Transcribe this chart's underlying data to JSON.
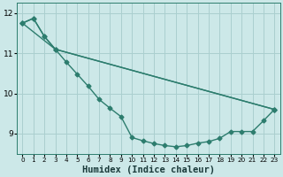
{
  "xlabel": "Humidex (Indice chaleur)",
  "background_color": "#cce8e8",
  "line_color": "#2d7d6e",
  "grid_color": "#aacfcf",
  "xlim": [
    -0.5,
    23.5
  ],
  "ylim": [
    8.5,
    12.25
  ],
  "yticks": [
    9,
    10,
    11,
    12
  ],
  "xtick_labels": [
    "0",
    "1",
    "2",
    "3",
    "4",
    "5",
    "6",
    "7",
    "8",
    "9",
    "10",
    "11",
    "12",
    "13",
    "14",
    "15",
    "16",
    "17",
    "18",
    "19",
    "20",
    "21",
    "22",
    "23"
  ],
  "line1_x": [
    0,
    1,
    2,
    3,
    4,
    5,
    6,
    7,
    8,
    9,
    10,
    11,
    12,
    13,
    14,
    15,
    16,
    17,
    18,
    19,
    20,
    21,
    22,
    23
  ],
  "line1_y": [
    11.75,
    11.87,
    11.42,
    11.1,
    10.78,
    10.48,
    10.18,
    9.85,
    9.63,
    9.42,
    8.9,
    8.82,
    8.75,
    8.7,
    8.67,
    8.7,
    8.76,
    8.8,
    8.88,
    9.05,
    9.05,
    9.05,
    9.32,
    9.6
  ],
  "line2_x": [
    0,
    1,
    2,
    3,
    23
  ],
  "line2_y": [
    11.75,
    11.87,
    11.42,
    11.1,
    9.6
  ],
  "line3_x": [
    0,
    3,
    23
  ],
  "line3_y": [
    11.75,
    11.1,
    9.6
  ],
  "marker_size": 2.5,
  "line_width": 1.0
}
